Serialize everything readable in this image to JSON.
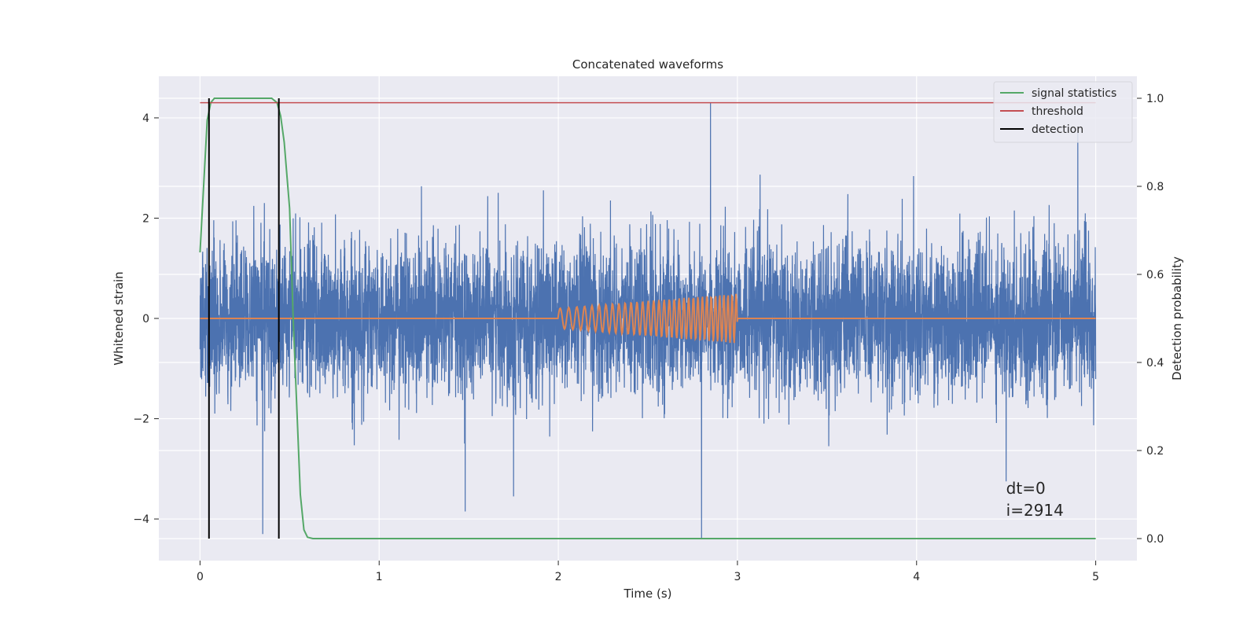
{
  "chart_data": {
    "type": "line",
    "title": "Concatenated waveforms",
    "xlabel": "Time (s)",
    "ylabel": "Whitened strain",
    "ylabel_right": "Detection probability",
    "xlim": [
      -0.23,
      5.23
    ],
    "ylim": [
      -4.83,
      4.83
    ],
    "ylim_right": [
      -0.05,
      1.05
    ],
    "x_ticks": [
      0,
      1,
      2,
      3,
      4,
      5
    ],
    "x_tick_labels": [
      "0",
      "1",
      "2",
      "3",
      "4",
      "5"
    ],
    "y_ticks": [
      -4,
      -2,
      0,
      2,
      4
    ],
    "y_tick_labels": [
      "−4",
      "−2",
      "0",
      "2",
      "4"
    ],
    "y_right_ticks": [
      0.0,
      0.2,
      0.4,
      0.6,
      0.8,
      1.0
    ],
    "y_right_tick_labels": [
      "0.0",
      "0.2",
      "0.4",
      "0.6",
      "0.8",
      "1.0"
    ],
    "grid": true,
    "legend_position": "top-right",
    "series": [
      {
        "name": "",
        "axis": "left",
        "color": "#4c72b0",
        "description": "whitened noisy strain",
        "x_range": [
          0,
          5
        ],
        "rms": 0.75,
        "spikes": [
          {
            "x": 2.85,
            "y": 4.3
          },
          {
            "x": 2.8,
            "y": -4.4
          },
          {
            "x": 4.9,
            "y": 3.7
          },
          {
            "x": 1.48,
            "y": -3.85
          },
          {
            "x": 4.5,
            "y": -3.25
          },
          {
            "x": 1.75,
            "y": -3.55
          },
          {
            "x": 0.35,
            "y": -4.3
          }
        ]
      },
      {
        "name": "",
        "axis": "left",
        "color": "#dd8452",
        "description": "injected chirp waveform",
        "x": [
          0,
          2,
          3,
          5
        ],
        "chirp_start": 2.0,
        "chirp_end": 3.0,
        "amplitude_start": 0.2,
        "amplitude_end": 0.5,
        "freq_start": 20,
        "freq_end": 45
      },
      {
        "name": "signal statistics",
        "axis": "right",
        "color": "#55a868",
        "x": [
          0.0,
          0.02,
          0.04,
          0.06,
          0.08,
          0.12,
          0.2,
          0.3,
          0.4,
          0.43,
          0.45,
          0.47,
          0.5,
          0.52,
          0.54,
          0.56,
          0.58,
          0.6,
          0.63,
          0.7,
          1.0,
          2.0,
          3.0,
          4.0,
          5.0
        ],
        "y": [
          0.65,
          0.8,
          0.95,
          0.99,
          1.0,
          1.0,
          1.0,
          1.0,
          1.0,
          0.99,
          0.96,
          0.9,
          0.75,
          0.5,
          0.3,
          0.1,
          0.02,
          0.003,
          0.0,
          0.0,
          0.0,
          0.0,
          0.0,
          0.0,
          0.0
        ]
      },
      {
        "name": "threshold",
        "axis": "right",
        "color": "#c44e52",
        "x": [
          0,
          5
        ],
        "y": [
          0.99,
          0.99
        ]
      },
      {
        "name": "detection",
        "axis": "right",
        "color": "#000000",
        "x": [
          0.05,
          0.44
        ],
        "y_span": [
          0.0,
          1.0
        ]
      }
    ],
    "annotations": [
      "dt=0",
      "i=2914"
    ],
    "annotation_position": [
      4.5,
      0.08
    ]
  },
  "colors": {
    "axes_background": "#eaeaf2",
    "grid": "#ffffff"
  }
}
